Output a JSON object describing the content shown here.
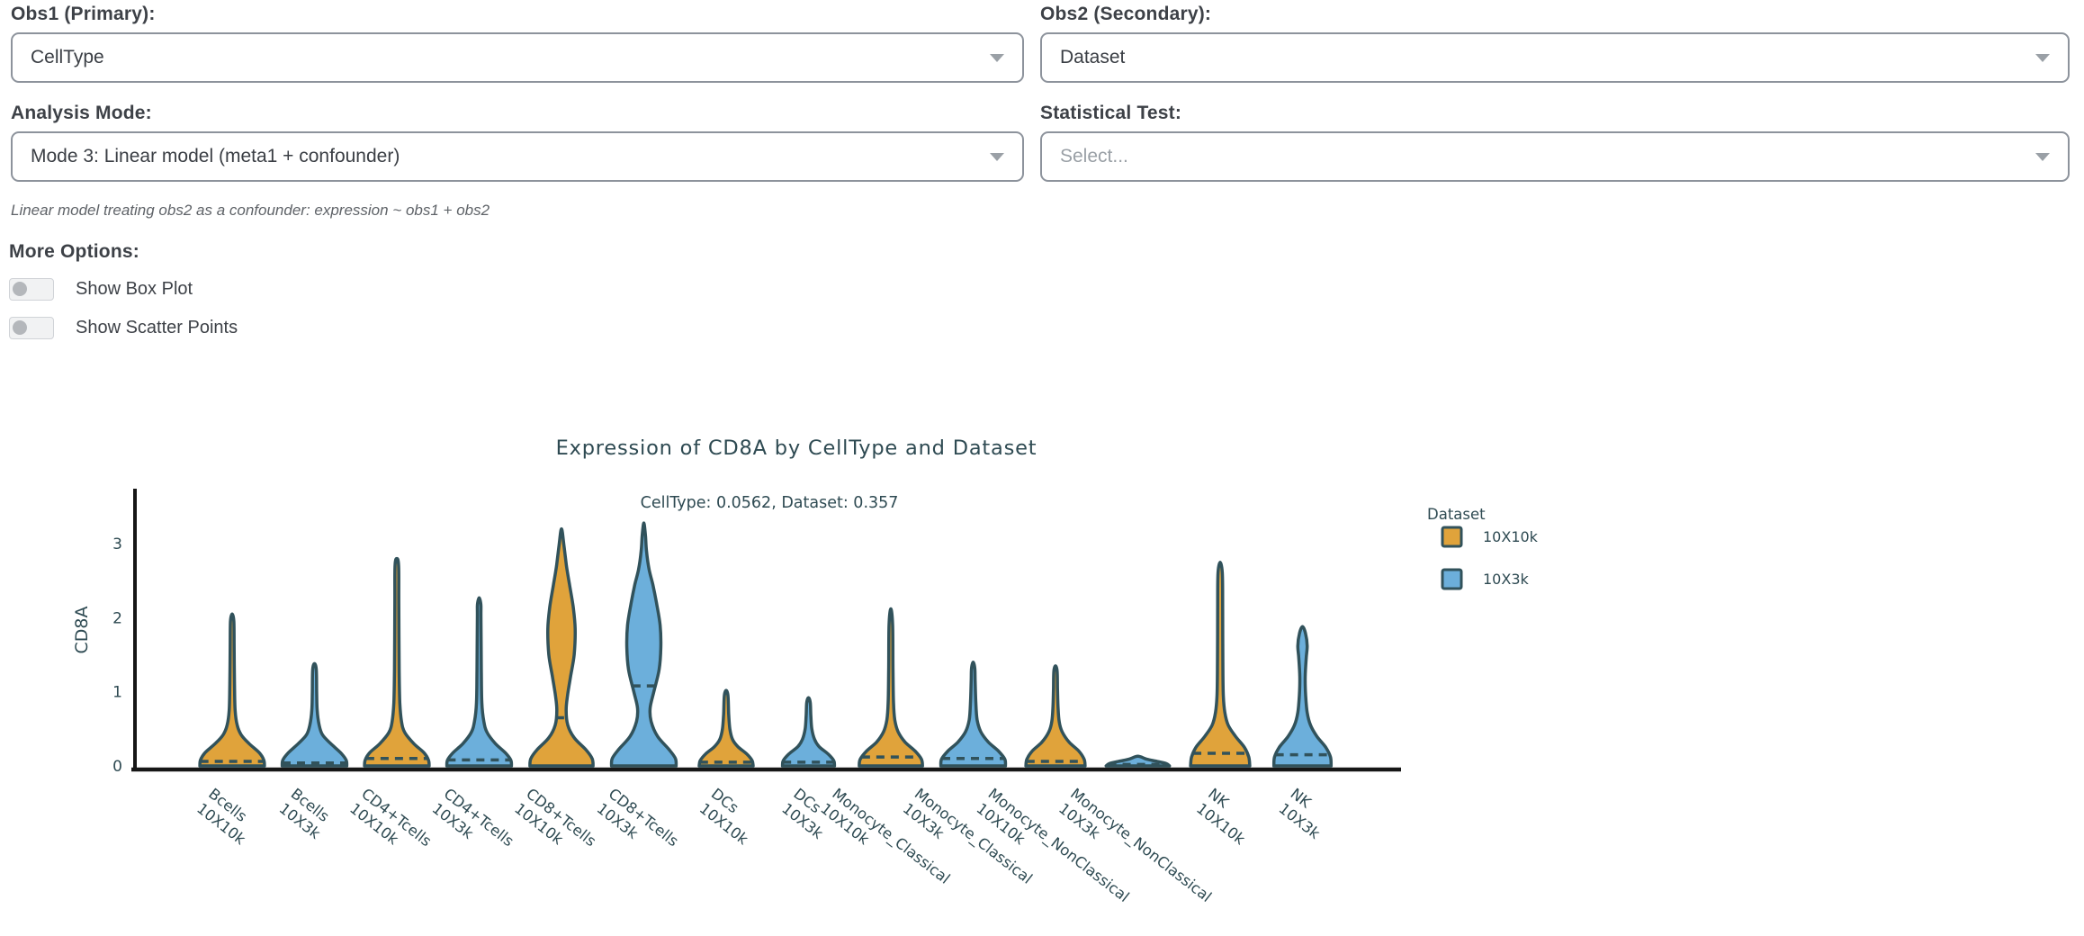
{
  "form": {
    "obs1_label": "Obs1 (Primary):",
    "obs1_value": "CellType",
    "obs2_label": "Obs2 (Secondary):",
    "obs2_value": "Dataset",
    "mode_label": "Analysis Mode:",
    "mode_value": "Mode 3: Linear model (meta1 + confounder)",
    "test_label": "Statistical Test:",
    "test_placeholder": "Select...",
    "mode_hint": "Linear model treating obs2 as a confounder: expression ~ obs1 + obs2",
    "more_options_label": "More Options:",
    "toggles": [
      {
        "label": "Show Box Plot",
        "enabled": false
      },
      {
        "label": "Show Scatter Points",
        "enabled": false
      }
    ]
  },
  "chart_data": {
    "type": "violin",
    "title": "Expression of CD8A by CellType and Dataset",
    "subtitle": "CellType: 0.0562, Dataset: 0.357",
    "stats": {
      "CellType": 0.0562,
      "Dataset": 0.357
    },
    "gene": "CD8A",
    "ylabel": "CD8A",
    "yticks": [
      0,
      1,
      2,
      3
    ],
    "ylim": [
      0,
      3.5
    ],
    "grid": false,
    "legend": {
      "title": "Dataset",
      "position": "right",
      "entries": [
        {
          "label": "10X10k",
          "color": "#E0A33B"
        },
        {
          "label": "10X3k",
          "color": "#6CAFDB"
        }
      ]
    },
    "colors": {
      "orange": "#E0A33B",
      "blue": "#6CAFDB",
      "outline": "#31525B",
      "axis": "#161616",
      "text": "#2E4A52"
    },
    "violins": [
      {
        "category": "Bcells",
        "dataset": "10X10k",
        "color": "#E0A33B",
        "max": 2.05,
        "median": 0.06,
        "profile": [
          [
            0,
            0.97
          ],
          [
            0.08,
            0.95
          ],
          [
            0.18,
            0.81
          ],
          [
            0.3,
            0.51
          ],
          [
            0.42,
            0.27
          ],
          [
            0.55,
            0.15
          ],
          [
            0.75,
            0.09
          ],
          [
            1.1,
            0.07
          ],
          [
            1.6,
            0.06
          ],
          [
            1.95,
            0.05
          ],
          [
            2.05,
            0
          ]
        ]
      },
      {
        "category": "Bcells",
        "dataset": "10X3k",
        "color": "#6CAFDB",
        "max": 1.38,
        "median": 0.04,
        "profile": [
          [
            0,
            0.97
          ],
          [
            0.08,
            0.95
          ],
          [
            0.18,
            0.78
          ],
          [
            0.3,
            0.49
          ],
          [
            0.42,
            0.24
          ],
          [
            0.55,
            0.14
          ],
          [
            0.75,
            0.08
          ],
          [
            1.0,
            0.065
          ],
          [
            1.3,
            0.055
          ],
          [
            1.38,
            0
          ]
        ]
      },
      {
        "category": "CD4+Tcells",
        "dataset": "10X10k",
        "color": "#E0A33B",
        "max": 2.8,
        "median": 0.1,
        "profile": [
          [
            0,
            0.97
          ],
          [
            0.08,
            0.95
          ],
          [
            0.18,
            0.81
          ],
          [
            0.3,
            0.51
          ],
          [
            0.45,
            0.24
          ],
          [
            0.6,
            0.14
          ],
          [
            0.85,
            0.09
          ],
          [
            1.3,
            0.07
          ],
          [
            2.2,
            0.06
          ],
          [
            2.7,
            0.054
          ],
          [
            2.8,
            0
          ]
        ]
      },
      {
        "category": "CD4+Tcells",
        "dataset": "10X3k",
        "color": "#6CAFDB",
        "max": 2.27,
        "median": 0.08,
        "profile": [
          [
            0,
            0.97
          ],
          [
            0.08,
            0.95
          ],
          [
            0.18,
            0.78
          ],
          [
            0.3,
            0.49
          ],
          [
            0.45,
            0.24
          ],
          [
            0.6,
            0.14
          ],
          [
            0.85,
            0.08
          ],
          [
            1.3,
            0.065
          ],
          [
            2.0,
            0.055
          ],
          [
            2.18,
            0.05
          ],
          [
            2.27,
            0
          ]
        ]
      },
      {
        "category": "CD8+Tcells",
        "dataset": "10X10k",
        "color": "#E0A33B",
        "max": 3.2,
        "median": 0.65,
        "profile": [
          [
            0,
            0.95
          ],
          [
            0.1,
            0.92
          ],
          [
            0.22,
            0.73
          ],
          [
            0.38,
            0.38
          ],
          [
            0.55,
            0.19
          ],
          [
            0.75,
            0.14
          ],
          [
            0.95,
            0.18
          ],
          [
            1.2,
            0.27
          ],
          [
            1.5,
            0.38
          ],
          [
            1.85,
            0.41
          ],
          [
            2.15,
            0.35
          ],
          [
            2.45,
            0.24
          ],
          [
            2.7,
            0.15
          ],
          [
            2.95,
            0.08
          ],
          [
            3.2,
            0
          ]
        ]
      },
      {
        "category": "CD8+Tcells",
        "dataset": "10X3k",
        "color": "#6CAFDB",
        "max": 3.28,
        "median": 1.08,
        "profile": [
          [
            0,
            0.97
          ],
          [
            0.1,
            0.95
          ],
          [
            0.22,
            0.76
          ],
          [
            0.4,
            0.41
          ],
          [
            0.6,
            0.22
          ],
          [
            0.78,
            0.19
          ],
          [
            1.0,
            0.3
          ],
          [
            1.3,
            0.46
          ],
          [
            1.6,
            0.51
          ],
          [
            1.9,
            0.49
          ],
          [
            2.2,
            0.38
          ],
          [
            2.45,
            0.27
          ],
          [
            2.65,
            0.16
          ],
          [
            2.9,
            0.08
          ],
          [
            3.1,
            0.05
          ],
          [
            3.28,
            0
          ]
        ]
      },
      {
        "category": "DCs",
        "dataset": "10X10k",
        "color": "#E0A33B",
        "max": 1.02,
        "median": 0.05,
        "profile": [
          [
            0,
            0.81
          ],
          [
            0.07,
            0.78
          ],
          [
            0.16,
            0.62
          ],
          [
            0.26,
            0.35
          ],
          [
            0.36,
            0.19
          ],
          [
            0.5,
            0.11
          ],
          [
            0.7,
            0.076
          ],
          [
            0.95,
            0.054
          ],
          [
            1.02,
            0
          ]
        ]
      },
      {
        "category": "DCs",
        "dataset": "10X3k",
        "color": "#6CAFDB",
        "max": 0.92,
        "median": 0.05,
        "profile": [
          [
            0,
            0.78
          ],
          [
            0.07,
            0.76
          ],
          [
            0.16,
            0.59
          ],
          [
            0.26,
            0.32
          ],
          [
            0.36,
            0.18
          ],
          [
            0.5,
            0.1
          ],
          [
            0.68,
            0.07
          ],
          [
            0.85,
            0.054
          ],
          [
            0.92,
            0
          ]
        ]
      },
      {
        "category": "Monocyte_Classical",
        "dataset": "10X10k",
        "color": "#E0A33B",
        "max": 2.12,
        "median": 0.12,
        "profile": [
          [
            0,
            0.95
          ],
          [
            0.09,
            0.92
          ],
          [
            0.2,
            0.73
          ],
          [
            0.32,
            0.43
          ],
          [
            0.46,
            0.22
          ],
          [
            0.62,
            0.12
          ],
          [
            0.85,
            0.08
          ],
          [
            1.3,
            0.065
          ],
          [
            1.9,
            0.054
          ],
          [
            2.12,
            0
          ]
        ]
      },
      {
        "category": "Monocyte_Classical",
        "dataset": "10X3k",
        "color": "#6CAFDB",
        "max": 1.4,
        "median": 0.1,
        "profile": [
          [
            0,
            0.97
          ],
          [
            0.09,
            0.95
          ],
          [
            0.2,
            0.76
          ],
          [
            0.32,
            0.46
          ],
          [
            0.46,
            0.23
          ],
          [
            0.62,
            0.12
          ],
          [
            0.85,
            0.08
          ],
          [
            1.15,
            0.06
          ],
          [
            1.32,
            0.049
          ],
          [
            1.4,
            0
          ]
        ]
      },
      {
        "category": "Monocyte_NonClassical",
        "dataset": "10X10k",
        "color": "#E0A33B",
        "max": 1.35,
        "median": 0.06,
        "profile": [
          [
            0,
            0.89
          ],
          [
            0.09,
            0.86
          ],
          [
            0.2,
            0.7
          ],
          [
            0.32,
            0.41
          ],
          [
            0.46,
            0.2
          ],
          [
            0.6,
            0.11
          ],
          [
            0.8,
            0.076
          ],
          [
            1.05,
            0.06
          ],
          [
            1.28,
            0.049
          ],
          [
            1.35,
            0
          ]
        ]
      },
      {
        "category": "Monocyte_NonClassical",
        "dataset": "10X3k",
        "color": "#6CAFDB",
        "max": 0.13,
        "median": 0.02,
        "profile": [
          [
            0,
            0.95
          ],
          [
            0.03,
            0.86
          ],
          [
            0.06,
            0.59
          ],
          [
            0.09,
            0.27
          ],
          [
            0.13,
            0
          ]
        ]
      },
      {
        "category": "NK",
        "dataset": "10X10k",
        "color": "#E0A33B",
        "max": 2.75,
        "median": 0.17,
        "profile": [
          [
            0,
            0.89
          ],
          [
            0.12,
            0.86
          ],
          [
            0.25,
            0.73
          ],
          [
            0.4,
            0.46
          ],
          [
            0.55,
            0.24
          ],
          [
            0.72,
            0.14
          ],
          [
            0.95,
            0.095
          ],
          [
            1.4,
            0.08
          ],
          [
            2.1,
            0.076
          ],
          [
            2.6,
            0.065
          ],
          [
            2.75,
            0
          ]
        ]
      },
      {
        "category": "NK",
        "dataset": "10X3k",
        "color": "#6CAFDB",
        "max": 1.88,
        "median": 0.15,
        "profile": [
          [
            0,
            0.86
          ],
          [
            0.12,
            0.84
          ],
          [
            0.25,
            0.7
          ],
          [
            0.4,
            0.43
          ],
          [
            0.55,
            0.24
          ],
          [
            0.72,
            0.14
          ],
          [
            0.95,
            0.095
          ],
          [
            1.2,
            0.08
          ],
          [
            1.45,
            0.11
          ],
          [
            1.62,
            0.14
          ],
          [
            1.78,
            0.095
          ],
          [
            1.88,
            0
          ]
        ]
      }
    ]
  }
}
